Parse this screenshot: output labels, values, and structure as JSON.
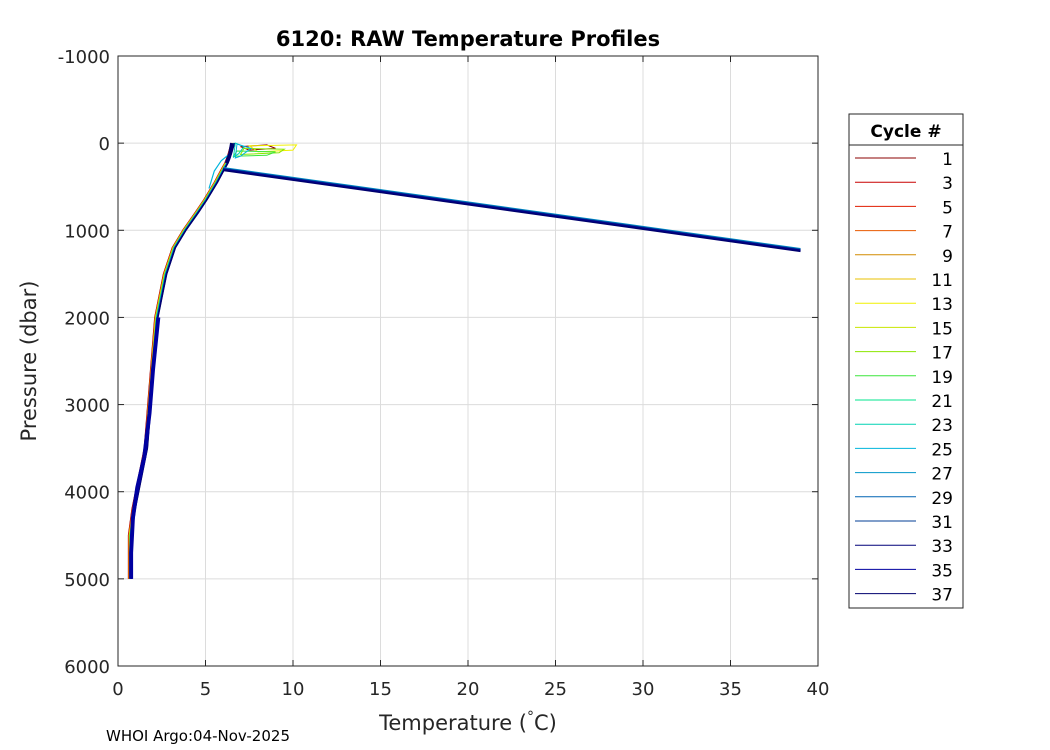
{
  "chart_data": {
    "type": "line",
    "title": "6120: RAW Temperature Profiles",
    "xlabel": "Temperature (",
    "xlabel_degree": "°",
    "xlabel_unit": "C)",
    "ylabel": "Pressure (dbar)",
    "xlim": [
      0,
      40
    ],
    "ylim": [
      -1000,
      6000
    ],
    "y_reversed": true,
    "grid": true,
    "xticks": [
      0,
      5,
      10,
      15,
      20,
      25,
      30,
      35,
      40
    ],
    "yticks": [
      -1000,
      0,
      1000,
      2000,
      3000,
      4000,
      5000,
      6000
    ],
    "xtick_labels": [
      "0",
      "5",
      "10",
      "15",
      "20",
      "25",
      "30",
      "35",
      "40"
    ],
    "ytick_labels": [
      "-1000",
      "0",
      "1000",
      "2000",
      "3000",
      "4000",
      "5000",
      "6000"
    ],
    "legend_title": "Cycle #",
    "legend_position": "outside-right",
    "series": [
      {
        "name": "1",
        "color": "#8b0000"
      },
      {
        "name": "3",
        "color": "#c80000"
      },
      {
        "name": "5",
        "color": "#e01b00"
      },
      {
        "name": "7",
        "color": "#e85a00"
      },
      {
        "name": "9",
        "color": "#d28c00"
      },
      {
        "name": "11",
        "color": "#e8c000"
      },
      {
        "name": "13",
        "color": "#f0f000"
      },
      {
        "name": "15",
        "color": "#c8e600"
      },
      {
        "name": "17",
        "color": "#8ce600"
      },
      {
        "name": "19",
        "color": "#3ce63c"
      },
      {
        "name": "21",
        "color": "#00e68c"
      },
      {
        "name": "23",
        "color": "#00d2b4"
      },
      {
        "name": "25",
        "color": "#00b4dc"
      },
      {
        "name": "27",
        "color": "#0096c8"
      },
      {
        "name": "29",
        "color": "#0064b4"
      },
      {
        "name": "31",
        "color": "#003c96"
      },
      {
        "name": "33",
        "color": "#000078"
      },
      {
        "name": "35",
        "color": "#0000a0"
      },
      {
        "name": "37",
        "color": "#00006e"
      }
    ],
    "profile": [
      [
        6.6,
        0
      ],
      [
        6.5,
        50
      ],
      [
        6.4,
        120
      ],
      [
        6.3,
        180
      ],
      [
        6.2,
        230
      ],
      [
        6.0,
        300
      ],
      [
        5.6,
        450
      ],
      [
        5.0,
        650
      ],
      [
        4.5,
        800
      ],
      [
        3.8,
        1000
      ],
      [
        3.2,
        1200
      ],
      [
        2.7,
        1500
      ],
      [
        2.4,
        1800
      ],
      [
        2.2,
        2000
      ],
      [
        2.0,
        2500
      ],
      [
        1.8,
        3000
      ],
      [
        1.6,
        3500
      ],
      [
        1.2,
        3900
      ],
      [
        0.9,
        4200
      ],
      [
        0.7,
        4500
      ],
      [
        0.7,
        5000
      ]
    ],
    "spike": [
      [
        6.0,
        300
      ],
      [
        39.0,
        1230
      ]
    ],
    "surface_loops": [
      {
        "color": "#8b0000",
        "points": [
          [
            7.0,
            40
          ],
          [
            8.5,
            20
          ],
          [
            9.0,
            60
          ],
          [
            7.5,
            80
          ]
        ]
      },
      {
        "color": "#f0f000",
        "points": [
          [
            7.5,
            30
          ],
          [
            10.2,
            20
          ],
          [
            10.0,
            80
          ],
          [
            8.0,
            100
          ]
        ]
      },
      {
        "color": "#8ce600",
        "points": [
          [
            7.2,
            60
          ],
          [
            9.5,
            70
          ],
          [
            9.2,
            110
          ],
          [
            7.0,
            130
          ]
        ]
      },
      {
        "color": "#3ce63c",
        "points": [
          [
            6.8,
            90
          ],
          [
            9.0,
            100
          ],
          [
            8.5,
            140
          ],
          [
            6.6,
            150
          ]
        ]
      },
      {
        "color": "#00d2b4",
        "points": [
          [
            6.7,
            0
          ],
          [
            7.2,
            40
          ],
          [
            6.9,
            120
          ],
          [
            6.6,
            160
          ]
        ]
      },
      {
        "color": "#00b4dc",
        "points": [
          [
            6.8,
            10
          ],
          [
            7.6,
            60
          ],
          [
            7.0,
            150
          ],
          [
            6.7,
            170
          ]
        ]
      }
    ],
    "upper_branch": [
      [
        6.4,
        120
      ],
      [
        5.9,
        200
      ],
      [
        5.5,
        320
      ],
      [
        5.3,
        450
      ],
      [
        5.2,
        520
      ]
    ]
  },
  "footer": "WHOI Argo:04-Nov-2025"
}
